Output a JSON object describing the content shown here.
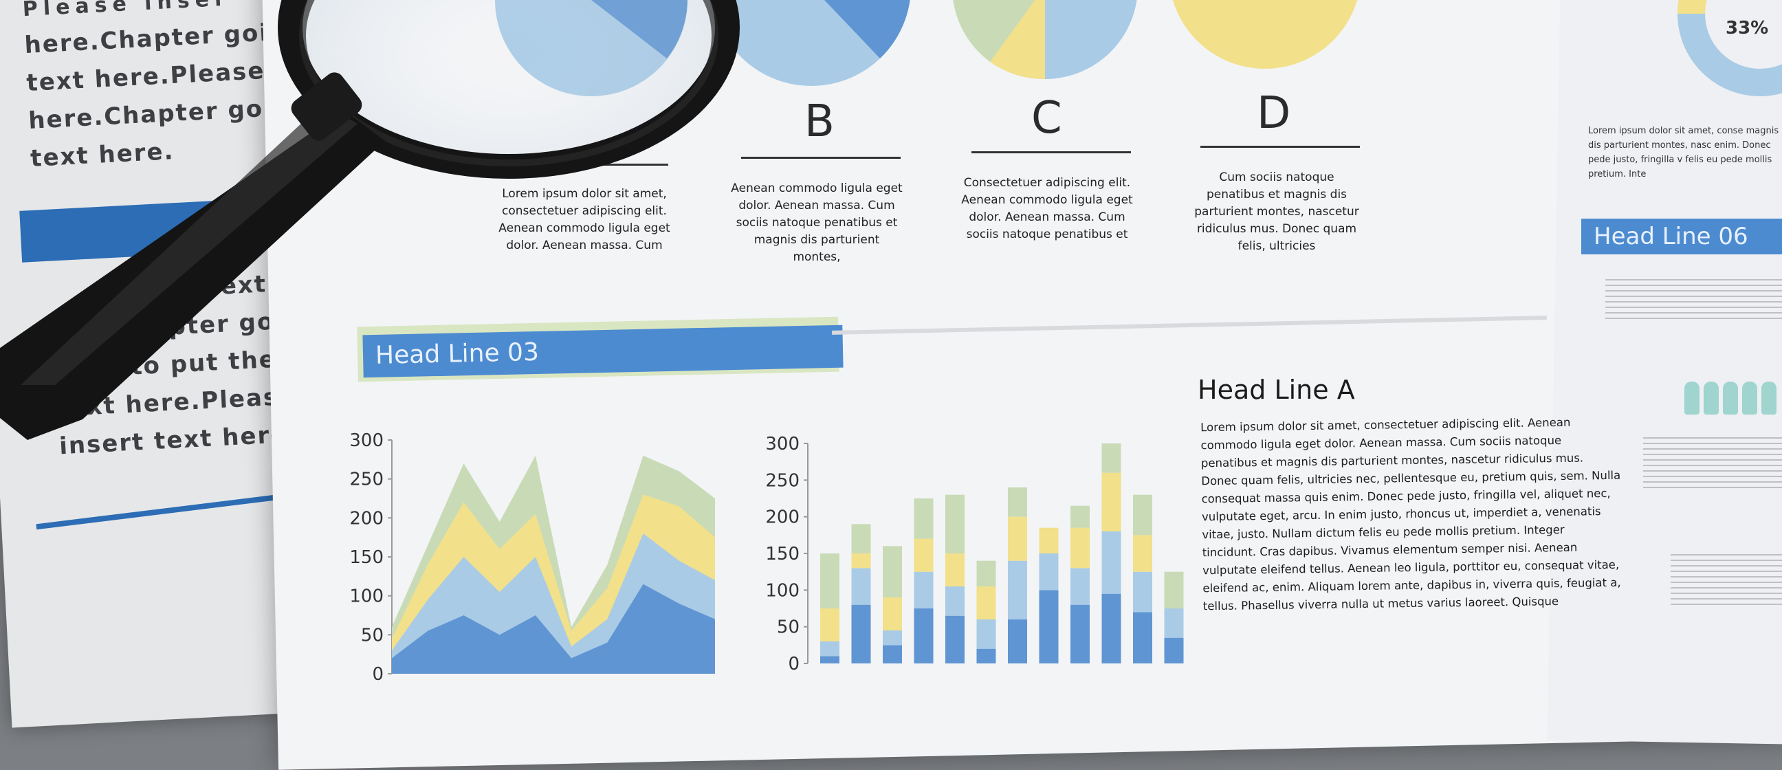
{
  "left_sheet": {
    "lines_top": [
      "Please inser",
      "here.Chapter going to",
      "text here.Please ins",
      "here.Chapter going to",
      "text here."
    ],
    "lines_bottom": [
      "sert text he",
      "Chapter goin",
      "ing to put the te",
      "text here.Please in",
      "insert text here.Ch"
    ]
  },
  "columns": [
    {
      "letter": "",
      "text": "Lorem ipsum dolor sit amet, consectetuer adipiscing elit. Aenean commodo ligula eget dolor. Aenean massa. Cum"
    },
    {
      "letter": "B",
      "text": "Aenean commodo ligula eget dolor. Aenean massa. Cum sociis natoque penatibus et magnis dis parturient montes,"
    },
    {
      "letter": "C",
      "text": "Consectetuer adipiscing elit. Aenean commodo ligula eget dolor. Aenean massa. Cum sociis natoque penatibus et"
    },
    {
      "letter": "D",
      "text": "Cum sociis natoque penatibus et magnis dis parturient montes, nascetur ridiculus mus. Donec quam felis, ultricies"
    }
  ],
  "right_sheet": {
    "percent": "33%",
    "intro": "Lorem ipsum dolor sit amet, conse magnis dis parturient montes, nasc enim. Donec pede justo, fringilla v felis eu pede mollis pretium. Inte",
    "headline": "Head Line 06"
  },
  "headline_03": "Head Line 03",
  "headline_a": "Head Line A",
  "body_a": "Lorem ipsum dolor sit amet, consectetuer adipiscing elit. Aenean commodo ligula eget dolor. Aenean massa. Cum sociis natoque penatibus et magnis dis parturient montes, nascetur ridiculus mus. Donec quam felis, ultricies nec, pellentesque eu, pretium quis, sem. Nulla consequat massa quis enim. Donec pede justo, fringilla vel, aliquet nec, vulputate eget, arcu. In enim justo, rhoncus ut, imperdiet a, venenatis vitae, justo. Nullam dictum felis eu pede mollis pretium. Integer tincidunt. Cras dapibus. Vivamus elementum semper nisi. Aenean vulputate eleifend tellus. Aenean leo ligula, porttitor eu, consequat vitae, eleifend ac, enim. Aliquam lorem ante, dapibus in, viverra quis, feugiat a, tellus. Phasellus viverra nulla ut metus varius laoreet. Quisque",
  "area_chart": {
    "y_ticks": [
      "300",
      "250",
      "200",
      "150",
      "100",
      "50",
      "0"
    ],
    "series": [
      {
        "values": [
          20,
          55,
          75,
          50,
          75,
          20,
          40,
          115,
          90,
          70
        ]
      },
      {
        "values": [
          30,
          95,
          150,
          105,
          150,
          35,
          70,
          180,
          145,
          120
        ]
      },
      {
        "values": [
          45,
          140,
          220,
          160,
          205,
          55,
          110,
          230,
          215,
          175
        ]
      },
      {
        "values": [
          60,
          165,
          270,
          195,
          280,
          60,
          140,
          280,
          260,
          225
        ]
      }
    ],
    "colors": [
      "#5f95d2",
      "#a9cbe6",
      "#f2e08a",
      "#c9dbb6"
    ]
  },
  "bar_chart": {
    "y_ticks": [
      "300",
      "250",
      "200",
      "150",
      "100",
      "50",
      "0"
    ],
    "stacks": [
      [
        10,
        20,
        45,
        75
      ],
      [
        80,
        50,
        20,
        40
      ],
      [
        25,
        20,
        45,
        70
      ],
      [
        75,
        50,
        45,
        55
      ],
      [
        65,
        40,
        45,
        80
      ],
      [
        20,
        40,
        45,
        35
      ],
      [
        60,
        80,
        60,
        40
      ],
      [
        100,
        50,
        35,
        0
      ],
      [
        80,
        50,
        55,
        30
      ],
      [
        95,
        85,
        80,
        40
      ],
      [
        70,
        55,
        50,
        55
      ],
      [
        35,
        40,
        0,
        50
      ]
    ],
    "colors": [
      "#5f95d2",
      "#a9cbe6",
      "#f2e08a",
      "#c9dbb6"
    ]
  },
  "pies": {
    "colors": [
      "#a9cbe6",
      "#f2e08a",
      "#c9dbb6",
      "#5f95d2"
    ]
  }
}
